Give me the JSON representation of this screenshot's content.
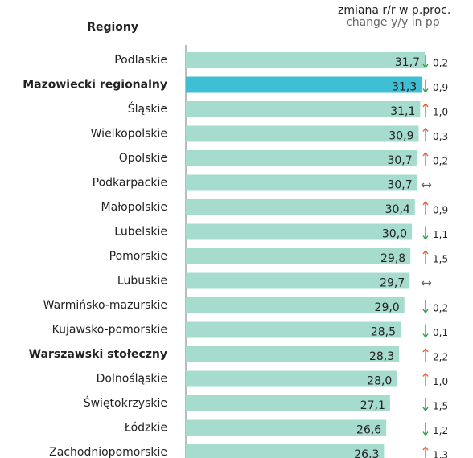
{
  "chart_data": {
    "type": "bar",
    "category_header": "Regiony",
    "change_header": "zmiana r/r w p.proc.",
    "change_header_en": "change y/y in pp",
    "categories": [
      "Podlaskie",
      "Mazowiecki regionalny",
      "Śląskie",
      "Wielkopolskie",
      "Opolskie",
      "Podkarpackie",
      "Małopolskie",
      "Lubelskie",
      "Pomorskie",
      "Lubuskie",
      "Warmińsko-mazurskie",
      "Kujawsko-pomorskie",
      "Warszawski stołeczny",
      "Dolnośląskie",
      "Świętokrzyskie",
      "Łódzkie",
      "Zachodniopomorskie"
    ],
    "values": [
      31.7,
      31.3,
      31.1,
      30.9,
      30.7,
      30.7,
      30.4,
      30.0,
      29.8,
      29.7,
      29.0,
      28.5,
      28.3,
      28.0,
      27.1,
      26.6,
      26.3
    ],
    "value_labels": [
      "31,7",
      "31,3",
      "31,1",
      "30,9",
      "30,7",
      "30,7",
      "30,4",
      "30,0",
      "29,8",
      "29,7",
      "29,0",
      "28,5",
      "28,3",
      "28,0",
      "27,1",
      "26,6",
      "26,3"
    ],
    "colors": [
      "#a6dccd",
      "#3ebfd4",
      "#a6dccd",
      "#a6dccd",
      "#a6dccd",
      "#a6dccd",
      "#a6dccd",
      "#a6dccd",
      "#a6dccd",
      "#a6dccd",
      "#a6dccd",
      "#a6dccd",
      "#a6dccd",
      "#a6dccd",
      "#a6dccd",
      "#a6dccd",
      "#a6dccd"
    ],
    "bold": [
      false,
      true,
      false,
      false,
      false,
      false,
      false,
      false,
      false,
      false,
      false,
      false,
      true,
      false,
      false,
      false,
      false
    ],
    "changes": [
      0.2,
      0.9,
      1.0,
      0.3,
      0.2,
      null,
      0.9,
      1.1,
      1.5,
      null,
      0.2,
      0.1,
      2.2,
      1.0,
      1.5,
      1.2,
      1.3
    ],
    "change_labels": [
      "0,2",
      "0,9",
      "1,0",
      "0,3",
      "0,2",
      null,
      "0,9",
      "1,1",
      "1,5",
      null,
      "0,2",
      "0,1",
      "2,2",
      "1,0",
      "1,5",
      "1,2",
      "1,3"
    ],
    "directions": [
      "down",
      "down",
      "up",
      "up",
      "up",
      "none",
      "up",
      "down",
      "up",
      "none",
      "down",
      "down",
      "up",
      "up",
      "down",
      "down",
      "up"
    ]
  }
}
